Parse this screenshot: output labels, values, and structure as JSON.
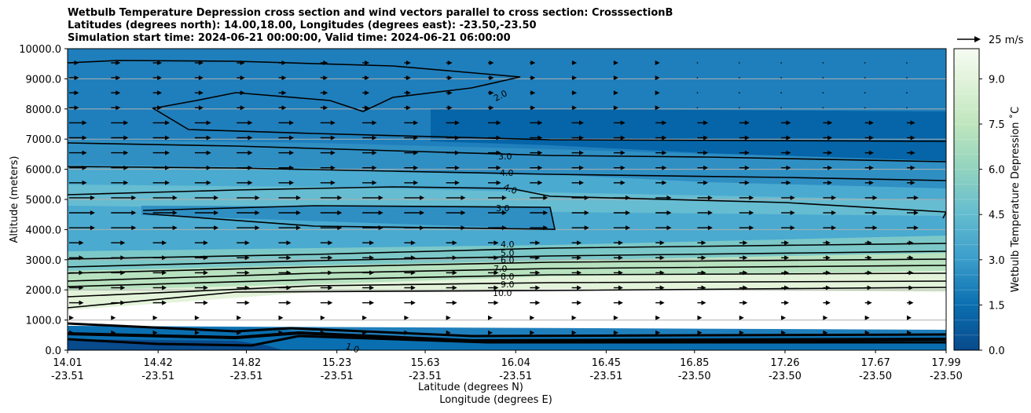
{
  "chart_data": {
    "type": "contour",
    "title_lines": [
      "Wetbulb Temperature Depression cross section and wind vectors parallel to cross section: CrosssectionB",
      "Latitudes (degrees north): 14.00,18.00, Longitudes (degrees east): -23.50,-23.50",
      "Simulation start time: 2024-06-21 00:00:00, Valid time: 2024-06-21 06:00:00"
    ],
    "xlabel_lat": "Latitude (degrees N)",
    "xlabel_lon": "Longitude (degrees E)",
    "ylabel": "Altitude (meters)",
    "colorbar_label": "Wetbulb Temperature Depression ˚C",
    "ylim": [
      0,
      10000
    ],
    "xlim": [
      14.01,
      17.99
    ],
    "y_ticks": [
      "0.0",
      "1000.0",
      "2000.0",
      "3000.0",
      "4000.0",
      "5000.0",
      "6000.0",
      "7000.0",
      "8000.0",
      "9000.0",
      "10000.0"
    ],
    "x_ticks": [
      {
        "lat": "14.01",
        "lon": "-23.51"
      },
      {
        "lat": "14.42",
        "lon": "-23.51"
      },
      {
        "lat": "14.82",
        "lon": "-23.51"
      },
      {
        "lat": "15.23",
        "lon": "-23.51"
      },
      {
        "lat": "15.63",
        "lon": "-23.51"
      },
      {
        "lat": "16.04",
        "lon": "-23.51"
      },
      {
        "lat": "16.45",
        "lon": "-23.51"
      },
      {
        "lat": "16.85",
        "lon": "-23.50"
      },
      {
        "lat": "17.26",
        "lon": "-23.50"
      },
      {
        "lat": "17.67",
        "lon": "-23.50"
      },
      {
        "lat": "17.99",
        "lon": "-23.50"
      }
    ],
    "colorbar_ticks": [
      "0.0",
      "1.5",
      "3.0",
      "4.5",
      "6.0",
      "7.5",
      "9.0"
    ],
    "colorbar_range": [
      0,
      10
    ],
    "wind_key": "25 m/s",
    "contour_labels": [
      "2.0",
      "3.0",
      "4.0",
      "4.0",
      "3.0",
      "4.0",
      "5.0",
      "6.0",
      "7.0",
      "8.0",
      "9.0",
      "10.0",
      "1.0"
    ],
    "colors": {
      "deep": "#0565a8",
      "mid": "#2f8fc3",
      "light": "#5fb8d2",
      "pale": "#a8dcb8",
      "paler": "#d7eecf",
      "white": "#ffffff"
    }
  }
}
